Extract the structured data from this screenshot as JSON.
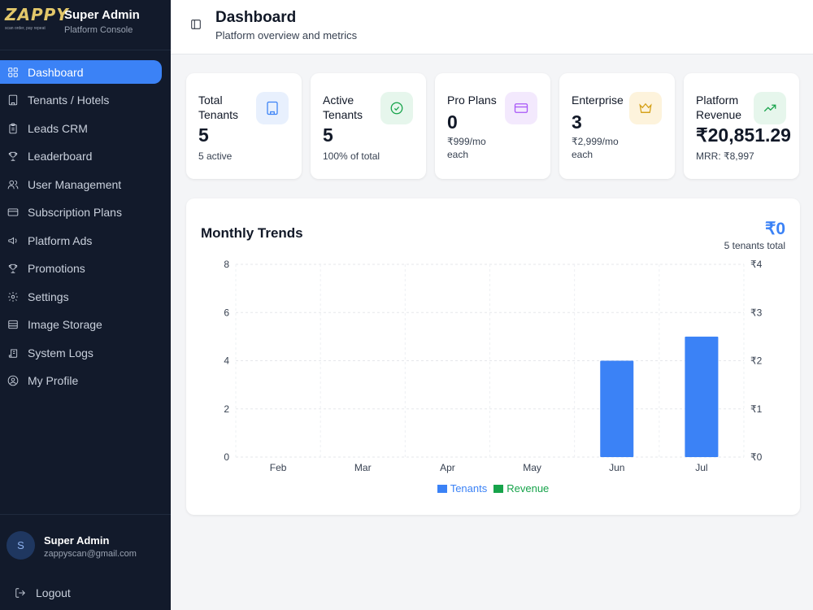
{
  "brand": {
    "logo_text": "ZAPPY",
    "logo_tagline": "scan order, pay repeat",
    "title": "Super Admin",
    "subtitle": "Platform Console"
  },
  "nav": [
    {
      "label": "Dashboard",
      "icon": "grid-icon",
      "active": true
    },
    {
      "label": "Tenants / Hotels",
      "icon": "building-icon"
    },
    {
      "label": "Leads CRM",
      "icon": "clipboard-icon"
    },
    {
      "label": "Leaderboard",
      "icon": "trophy-icon"
    },
    {
      "label": "User Management",
      "icon": "users-icon"
    },
    {
      "label": "Subscription Plans",
      "icon": "credit-card-icon"
    },
    {
      "label": "Platform Ads",
      "icon": "megaphone-icon"
    },
    {
      "label": "Promotions",
      "icon": "trophy-icon"
    },
    {
      "label": "Settings",
      "icon": "gear-icon"
    },
    {
      "label": "Image Storage",
      "icon": "database-icon"
    },
    {
      "label": "System Logs",
      "icon": "scroll-icon"
    },
    {
      "label": "My Profile",
      "icon": "user-circle-icon"
    }
  ],
  "user": {
    "avatar_initial": "S",
    "name": "Super Admin",
    "email": "zappyscan@gmail.com",
    "logout_label": "Logout"
  },
  "header": {
    "title": "Dashboard",
    "subtitle": "Platform overview and metrics"
  },
  "stats": [
    {
      "label": "Total Tenants",
      "value": "5",
      "sub": "5 active",
      "icon": "building-icon",
      "color": "#3b82f6",
      "bg": "#e8f0fd"
    },
    {
      "label": "Active Tenants",
      "value": "5",
      "sub": "100% of total",
      "icon": "check-circle-icon",
      "color": "#16a34a",
      "bg": "#e6f6ec"
    },
    {
      "label": "Pro Plans",
      "value": "0",
      "sub": "₹999/mo each",
      "icon": "credit-card-icon",
      "color": "#a855f7",
      "bg": "#f3e9fd"
    },
    {
      "label": "Enterprise",
      "value": "3",
      "sub": "₹2,999/mo each",
      "icon": "crown-icon",
      "color": "#d4a017",
      "bg": "#fdf3dc"
    },
    {
      "label": "Platform Revenue",
      "value": "₹20,851.29",
      "sub": "MRR: ₹8,997",
      "icon": "trending-up-icon",
      "color": "#16a34a",
      "bg": "#e6f6ec"
    }
  ],
  "chart_card": {
    "title": "Monthly Trends",
    "revenue_value": "₹0",
    "tenants_total": "5 tenants total"
  },
  "chart_data": {
    "type": "bar",
    "categories": [
      "Feb",
      "Mar",
      "Apr",
      "May",
      "Jun",
      "Jul"
    ],
    "series": [
      {
        "name": "Tenants",
        "values": [
          0,
          0,
          0,
          0,
          4,
          5
        ],
        "axis": "left",
        "color": "#3b82f6"
      },
      {
        "name": "Revenue",
        "values": [
          0,
          0,
          0,
          0,
          0,
          0
        ],
        "axis": "right",
        "color": "#16a34a"
      }
    ],
    "y_left": {
      "ticks": [
        "0",
        "2",
        "4",
        "6",
        "8"
      ],
      "range": [
        0,
        8
      ]
    },
    "y_right": {
      "ticks": [
        "₹0",
        "₹1",
        "₹2",
        "₹3",
        "₹4"
      ],
      "range": [
        0,
        4
      ]
    },
    "grid": true,
    "legend_position": "bottom-center"
  }
}
